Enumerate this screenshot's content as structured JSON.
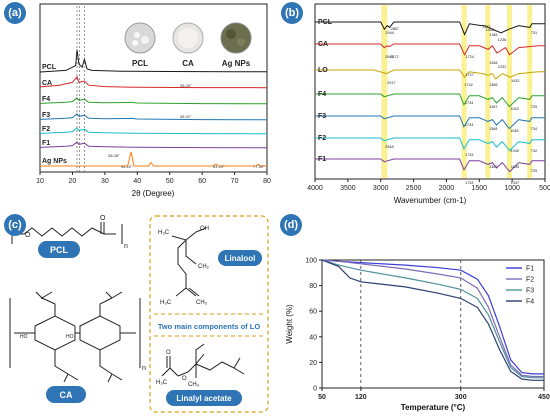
{
  "panels": {
    "a": {
      "badge": "(a)",
      "xlabel": "2θ (Degree)",
      "xticks": [
        "10",
        "20",
        "30",
        "40",
        "50",
        "60",
        "70",
        "80"
      ],
      "photo_labels": [
        "PCL",
        "CA",
        "Ag NPs"
      ],
      "peak_labels": [
        "38.08°",
        "44.22°",
        "64.24°",
        "77.30°",
        "38.28°",
        "38.32°"
      ]
    },
    "b": {
      "badge": "(b)",
      "xlabel": "Wavenumber (cm-1)",
      "xticks": [
        "4000",
        "3500",
        "3000",
        "2500",
        "2000",
        "1500",
        "1000",
        "500"
      ],
      "peak_labels": [
        "2944",
        "2867",
        "1472",
        "1418",
        "1361",
        "1236",
        "731",
        "1724",
        "2947",
        "2872",
        "1364",
        "1232",
        "1727",
        "2917",
        "1742",
        "1366",
        "1032",
        "1734",
        "1367",
        "1043",
        "733",
        "1734",
        "1368",
        "1045",
        "734",
        "2948",
        "1040",
        "732",
        "1733",
        "1367",
        "1035",
        "733",
        "1733",
        "1037"
      ]
    },
    "c": {
      "badge": "(c)",
      "labels": [
        "PCL",
        "CA",
        "Linalool",
        "Linalyl acetate",
        "Two main components of LO"
      ]
    },
    "d": {
      "badge": "(d)",
      "xlabel": "Temperature (°C)",
      "ylabel": "Weight (%)",
      "xticks": [
        "50",
        "120",
        "300",
        "450"
      ],
      "yticks": [
        "0",
        "20",
        "40",
        "60",
        "80",
        "100"
      ]
    }
  },
  "chart_data": [
    {
      "type": "line",
      "panel": "a",
      "xlabel": "2θ (Degree)",
      "ylabel": "",
      "xlim": [
        10,
        80
      ],
      "series": [
        {
          "name": "PCL",
          "color": "#1a1a1a",
          "x": [
            10,
            18,
            21,
            21.4,
            22,
            23,
            23.7,
            24.5,
            26,
            35,
            50,
            70,
            80
          ],
          "y": [
            0,
            1,
            4,
            14,
            5,
            3,
            8,
            2,
            1,
            0.5,
            0.3,
            0.2,
            0.2
          ]
        },
        {
          "name": "CA",
          "color": "#d62728",
          "x": [
            10,
            16,
            18,
            20,
            21.4,
            22,
            23.7,
            25,
            30,
            40,
            60,
            80
          ],
          "y": [
            0.8,
            2,
            3,
            4,
            8,
            4,
            5,
            2,
            1,
            0.5,
            0.3,
            0.2
          ]
        },
        {
          "name": "F4",
          "color": "#2ca02c",
          "x": [
            10,
            18,
            20,
            21.4,
            22,
            23.7,
            25,
            30,
            38.2,
            40,
            60,
            80
          ],
          "y": [
            0.5,
            1.5,
            2,
            5,
            3,
            4,
            1.5,
            1,
            1.3,
            0.8,
            0.3,
            0.2
          ]
        },
        {
          "name": "F3",
          "color": "#1f77b4",
          "x": [
            10,
            18,
            20,
            21.4,
            22,
            23.7,
            25,
            30,
            38.3,
            40,
            60,
            80
          ],
          "y": [
            0.5,
            1.5,
            2,
            5,
            3,
            4,
            1.5,
            1,
            1.3,
            0.8,
            0.3,
            0.2
          ]
        },
        {
          "name": "F2",
          "color": "#17becf",
          "x": [
            10,
            18,
            20,
            21.4,
            22,
            23.7,
            25,
            30,
            40,
            60,
            80
          ],
          "y": [
            0.5,
            1.5,
            2,
            5,
            3,
            4,
            1.5,
            1,
            0.6,
            0.3,
            0.2
          ]
        },
        {
          "name": "F1",
          "color": "#7b3fa0",
          "x": [
            10,
            18,
            20,
            21.4,
            22,
            23.7,
            25,
            30,
            40,
            60,
            80
          ],
          "y": [
            0.5,
            1.5,
            2,
            5,
            3,
            4,
            1.5,
            1,
            0.6,
            0.3,
            0.2
          ]
        },
        {
          "name": "Ag NPs",
          "color": "#ff7f0e",
          "x": [
            10,
            37,
            38.08,
            39,
            43.5,
            44.22,
            45,
            63.5,
            64.24,
            65,
            76.6,
            77.3,
            78,
            80
          ],
          "y": [
            0,
            0,
            10,
            0,
            0,
            2.5,
            0,
            0,
            1.5,
            0,
            0,
            1.2,
            0,
            0
          ]
        }
      ]
    },
    {
      "type": "line",
      "panel": "b",
      "xlabel": "Wavenumber (cm-1)",
      "ylabel": "",
      "xlim": [
        4000,
        500
      ],
      "series": [
        {
          "name": "PCL",
          "color": "#1a1a1a",
          "x": [
            4000,
            3000,
            2944,
            2900,
            2867,
            2800,
            1800,
            1724,
            1650,
            1472,
            1418,
            1361,
            1236,
            1170,
            1050,
            900,
            731,
            700,
            500
          ],
          "y": [
            10,
            10,
            6,
            8,
            7,
            10,
            10,
            3,
            9,
            8,
            8,
            7,
            5,
            4,
            6,
            8,
            7,
            9,
            9
          ]
        },
        {
          "name": "CA",
          "color": "#d62728",
          "x": [
            4000,
            3000,
            2947,
            2900,
            2872,
            2800,
            1800,
            1724,
            1650,
            1500,
            1364,
            1300,
            1232,
            1100,
            1040,
            900,
            600,
            500
          ],
          "y": [
            10,
            10,
            8,
            9,
            8.5,
            10,
            10,
            4,
            9,
            9,
            7,
            9,
            5,
            8,
            4,
            8,
            9,
            9
          ]
        },
        {
          "name": "LO",
          "color": "#c9a400",
          "x": [
            4000,
            3100,
            2917,
            2800,
            1800,
            1742,
            1727,
            1650,
            1450,
            1366,
            1300,
            1250,
            1150,
            1032,
            900,
            600,
            500
          ],
          "y": [
            10,
            10,
            8,
            10,
            10,
            7,
            6,
            9,
            8,
            7,
            8,
            5,
            8,
            6,
            8,
            9,
            9
          ]
        },
        {
          "name": "F4",
          "color": "#2ca02c",
          "x": [
            4000,
            3000,
            2947,
            2800,
            1800,
            1734,
            1650,
            1500,
            1367,
            1300,
            1240,
            1150,
            1043,
            900,
            733,
            700,
            500
          ],
          "y": [
            10,
            10,
            8.5,
            10,
            10,
            4,
            9,
            9,
            7,
            8,
            5,
            8,
            3,
            8,
            7,
            9,
            9
          ]
        },
        {
          "name": "F3",
          "color": "#1f77b4",
          "x": [
            4000,
            3000,
            2947,
            2800,
            1800,
            1734,
            1650,
            1500,
            1368,
            1300,
            1240,
            1150,
            1045,
            900,
            734,
            700,
            500
          ],
          "y": [
            10,
            10,
            8.5,
            10,
            10,
            4,
            9,
            9,
            7,
            8,
            5,
            8,
            3,
            8,
            7,
            9,
            9
          ]
        },
        {
          "name": "F2",
          "color": "#17becf",
          "x": [
            4000,
            3000,
            2948,
            2800,
            1800,
            1733,
            1650,
            1500,
            1367,
            1300,
            1240,
            1150,
            1040,
            900,
            732,
            700,
            500
          ],
          "y": [
            10,
            10,
            8.5,
            10,
            10,
            4,
            9,
            9,
            7,
            8,
            5,
            8,
            3,
            8,
            7,
            9,
            9
          ]
        },
        {
          "name": "F1",
          "color": "#7b3fa0",
          "x": [
            4000,
            3000,
            2947,
            2800,
            1800,
            1733,
            1650,
            1500,
            1367,
            1300,
            1240,
            1150,
            1037,
            900,
            733,
            700,
            500
          ],
          "y": [
            10,
            10,
            8.5,
            10,
            10,
            4,
            9,
            9,
            7,
            8,
            5,
            8,
            3,
            8,
            7,
            9,
            9
          ]
        }
      ]
    },
    {
      "type": "line",
      "panel": "d",
      "xlabel": "Temperature (°C)",
      "ylabel": "Weight (%)",
      "xlim": [
        50,
        450
      ],
      "ylim": [
        0,
        100
      ],
      "series": [
        {
          "name": "F1",
          "color": "#3b3bd6",
          "x": [
            50,
            80,
            120,
            200,
            260,
            300,
            330,
            350,
            370,
            390,
            410,
            430,
            450
          ],
          "y": [
            100,
            99,
            98,
            96,
            94,
            92,
            85,
            72,
            48,
            22,
            12,
            11,
            11
          ]
        },
        {
          "name": "F2",
          "color": "#7e6bb8",
          "x": [
            50,
            80,
            120,
            200,
            260,
            300,
            330,
            350,
            370,
            390,
            410,
            430,
            450
          ],
          "y": [
            100,
            99,
            97,
            93,
            89,
            86,
            78,
            63,
            40,
            18,
            10,
            9,
            9
          ]
        },
        {
          "name": "F3",
          "color": "#4e8f9a",
          "x": [
            50,
            80,
            120,
            200,
            260,
            300,
            330,
            350,
            370,
            390,
            410,
            430,
            450
          ],
          "y": [
            100,
            96,
            92,
            86,
            81,
            77,
            70,
            57,
            36,
            16,
            9,
            8,
            8
          ]
        },
        {
          "name": "F4",
          "color": "#2c3e70",
          "x": [
            50,
            80,
            100,
            120,
            200,
            260,
            300,
            330,
            350,
            370,
            390,
            410,
            430,
            450
          ],
          "y": [
            100,
            95,
            86,
            83,
            79,
            74,
            70,
            63,
            50,
            30,
            13,
            7,
            6,
            6
          ]
        }
      ],
      "vlines": [
        120,
        300
      ]
    }
  ]
}
